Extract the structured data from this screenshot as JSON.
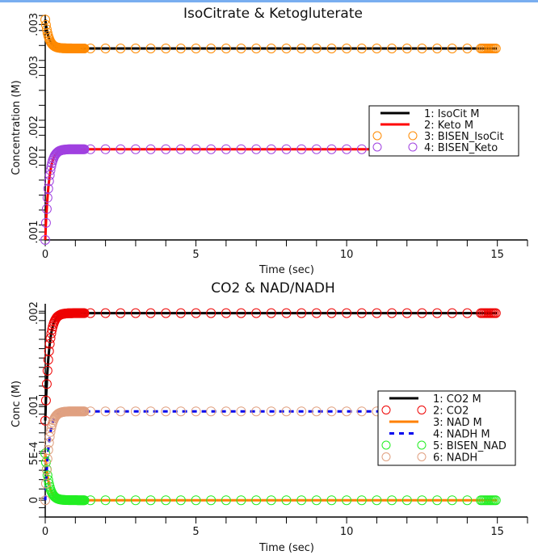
{
  "window": {
    "accent_bar_color": "#79aef0"
  },
  "chart_data": [
    {
      "type": "line",
      "title": "IsoCitrate & Ketogluterate",
      "xlabel": "Time (sec)",
      "ylabel": "Concentration (M)",
      "xlim": [
        0,
        16
      ],
      "ylim": [
        0.00092,
        0.00318
      ],
      "x_ticks": [
        0,
        5,
        10,
        15
      ],
      "x_minor_step": 1,
      "y_tick_labels": [
        {
          "value": 0.001,
          "label": ".001"
        },
        {
          "value": 0.00175,
          "label": ".002"
        },
        {
          "value": 0.00205,
          "label": ".002"
        },
        {
          "value": 0.00265,
          "label": ".003"
        },
        {
          "value": 0.00308,
          "label": ".003"
        }
      ],
      "y_minor_step": 0.00015,
      "legend": {
        "placement": "right"
      },
      "series": [
        {
          "name": "1: IsoCit M",
          "style": "line",
          "color": "#000000",
          "start": 0.00313,
          "end": 0.00284,
          "tau": 0.12
        },
        {
          "name": "2: Keto M",
          "style": "line",
          "color": "#ff0000",
          "start": 0.00092,
          "end": 0.00183,
          "tau": 0.12
        },
        {
          "name": "3: BISEN_IsoCit",
          "style": "circle",
          "color": "#ff8a00",
          "start": 0.00313,
          "end": 0.00284,
          "tau": 0.12
        },
        {
          "name": "4: BISEN_Keto",
          "style": "circle",
          "color": "#a040e0",
          "start": 0.00092,
          "end": 0.00183,
          "tau": 0.12
        }
      ]
    },
    {
      "type": "line",
      "title": "CO2 & NAD/NADH",
      "xlabel": "Time (sec)",
      "ylabel": "Conc (M)",
      "xlim": [
        0,
        16
      ],
      "ylim": [
        -0.00018,
        0.0021
      ],
      "x_ticks": [
        0,
        5,
        10,
        15
      ],
      "x_minor_step": 1,
      "y_tick_labels": [
        {
          "value": 0,
          "label": "0"
        },
        {
          "value": 0.0005,
          "label": "5E-4"
        },
        {
          "value": 0.001,
          "label": ".001"
        },
        {
          "value": 0.002,
          "label": ".002"
        }
      ],
      "y_minor_step": 0.0001,
      "legend": {
        "placement": "bottom-right"
      },
      "series": [
        {
          "name": "1: CO2 M",
          "style": "line",
          "color": "#000000",
          "start": 0.00085,
          "end": 0.002,
          "tau": 0.12
        },
        {
          "name": "2: CO2",
          "style": "circle",
          "color": "#ee0000",
          "start": 0.00085,
          "end": 0.002,
          "tau": 0.12
        },
        {
          "name": "3: NAD M",
          "style": "line",
          "color": "#ff8000",
          "start": 0.0005,
          "end": 0.0,
          "tau": 0.12
        },
        {
          "name": "4: NADH M",
          "style": "dash",
          "color": "#0000ee",
          "start": 0.0,
          "end": 0.00095,
          "tau": 0.12
        },
        {
          "name": "5: BISEN_NAD",
          "style": "circle",
          "color": "#22ee22",
          "start": 0.0005,
          "end": 0.0,
          "tau": 0.12
        },
        {
          "name": "6: NADH",
          "style": "circle",
          "color": "#e0a080",
          "start": 0.0,
          "end": 0.00095,
          "tau": 0.12
        }
      ]
    }
  ]
}
